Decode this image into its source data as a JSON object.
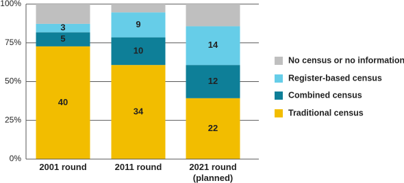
{
  "chart_data": {
    "type": "stacked_percent_bar",
    "categories": [
      "2001 round",
      "2011 round",
      "2021 round (planned)"
    ],
    "series": [
      {
        "name": "Traditional census",
        "color": "#f2bd00",
        "values": [
          40,
          34,
          22
        ]
      },
      {
        "name": "Combined census",
        "color": "#0e7f98",
        "values": [
          5,
          10,
          12
        ]
      },
      {
        "name": "Register-based census",
        "color": "#66cde8",
        "values": [
          3,
          9,
          14
        ]
      },
      {
        "name": "No census or no information",
        "color": "#bfbfbf",
        "values": [
          7,
          3,
          8
        ],
        "show_labels": false
      }
    ],
    "ylim": [
      0,
      100
    ],
    "yticks": [
      {
        "value": 0,
        "label": "0%"
      },
      {
        "value": 25,
        "label": "25%"
      },
      {
        "value": 50,
        "label": "50%"
      },
      {
        "value": 75,
        "label": "75%"
      },
      {
        "value": 100,
        "label": "100%"
      }
    ],
    "grid": true,
    "legend": "right"
  }
}
